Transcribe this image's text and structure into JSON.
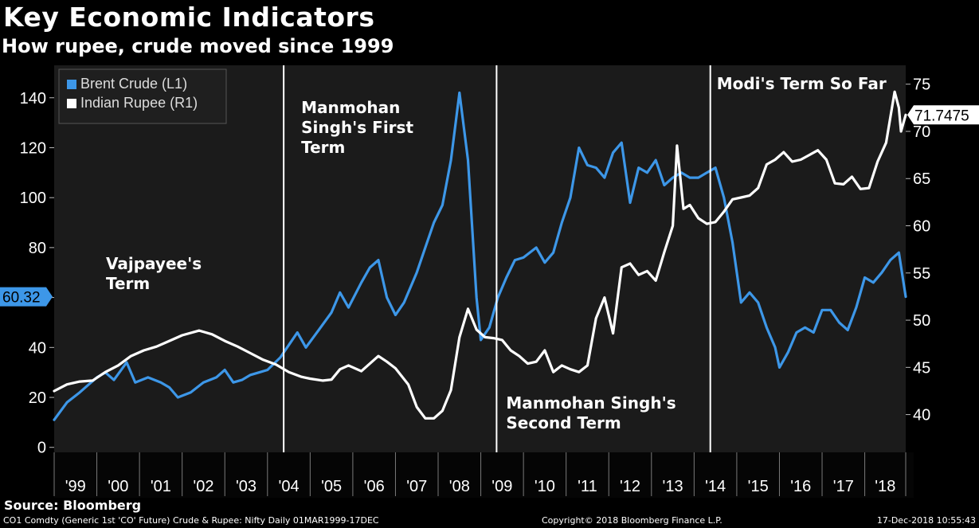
{
  "header": {
    "title": "Key Economic Indicators",
    "subtitle": "How rupee, crude moved since 1999"
  },
  "source": "Source: Bloomberg",
  "footer": {
    "left": "CO1 Comdty (Generic 1st 'CO' Future) Crude & Rupee: Nifty  Daily 01MAR1999-17DEC",
    "center": "Copyright© 2018 Bloomberg Finance L.P.",
    "right": "17-Dec-2018 10:55:43"
  },
  "colors": {
    "crude": "#3d97e8",
    "rupee": "#ffffff",
    "plot_bg": "#1b1b1b",
    "page_bg": "#000000"
  },
  "chart_data": {
    "type": "line",
    "x_range": [
      1999.0,
      2018.96
    ],
    "x_ticks": [
      {
        "label": "'99",
        "value": 1999
      },
      {
        "label": "'00",
        "value": 2000
      },
      {
        "label": "'01",
        "value": 2001
      },
      {
        "label": "'02",
        "value": 2002
      },
      {
        "label": "'03",
        "value": 2003
      },
      {
        "label": "'04",
        "value": 2004
      },
      {
        "label": "'05",
        "value": 2005
      },
      {
        "label": "'06",
        "value": 2006
      },
      {
        "label": "'07",
        "value": 2007
      },
      {
        "label": "'08",
        "value": 2008
      },
      {
        "label": "'09",
        "value": 2009
      },
      {
        "label": "'10",
        "value": 2010
      },
      {
        "label": "'11",
        "value": 2011
      },
      {
        "label": "'12",
        "value": 2012
      },
      {
        "label": "'13",
        "value": 2013
      },
      {
        "label": "'14",
        "value": 2014
      },
      {
        "label": "'15",
        "value": 2015
      },
      {
        "label": "'16",
        "value": 2016
      },
      {
        "label": "'17",
        "value": 2017
      },
      {
        "label": "'18",
        "value": 2018
      }
    ],
    "left_axis": {
      "range": [
        -2,
        153
      ],
      "ticks": [
        0,
        20,
        40,
        60,
        80,
        100,
        120,
        140
      ]
    },
    "right_axis": {
      "range": [
        36,
        77
      ],
      "ticks": [
        40,
        45,
        50,
        55,
        60,
        65,
        70,
        75
      ]
    },
    "legend": [
      {
        "label": "Brent Crude (L1)",
        "color": "#3d97e8"
      },
      {
        "label": "Indian Rupee (R1)",
        "color": "#ffffff"
      }
    ],
    "last_value_labels": {
      "crude": "60.32",
      "rupee": "71.7475"
    },
    "terms": [
      {
        "label_lines": [
          "Vajpayee's",
          "Term"
        ],
        "start": 1999.0,
        "end": 2004.38
      },
      {
        "label_lines": [
          "Manmohan",
          "Singh's First",
          "Term"
        ],
        "start": 2004.38,
        "end": 2009.37
      },
      {
        "label_lines": [
          "Manmohan Singh's",
          "Second Term"
        ],
        "start": 2009.37,
        "end": 2014.38
      },
      {
        "label_lines": [
          "Modi's Term So Far"
        ],
        "start": 2014.38,
        "end": 2018.96
      }
    ],
    "series": [
      {
        "name": "Brent Crude (L1)",
        "axis": "left",
        "x": [
          1999.0,
          1999.3,
          1999.6,
          1999.8,
          2000.0,
          2000.2,
          2000.4,
          2000.7,
          2000.9,
          2001.2,
          2001.5,
          2001.7,
          2001.9,
          2002.2,
          2002.5,
          2002.8,
          2003.0,
          2003.2,
          2003.4,
          2003.6,
          2003.8,
          2004.0,
          2004.3,
          2004.5,
          2004.7,
          2004.9,
          2005.2,
          2005.5,
          2005.7,
          2005.9,
          2006.2,
          2006.4,
          2006.6,
          2006.8,
          2007.0,
          2007.2,
          2007.5,
          2007.7,
          2007.9,
          2008.1,
          2008.3,
          2008.5,
          2008.7,
          2008.9,
          2009.0,
          2009.2,
          2009.4,
          2009.6,
          2009.8,
          2010.0,
          2010.3,
          2010.5,
          2010.7,
          2010.9,
          2011.1,
          2011.3,
          2011.5,
          2011.7,
          2011.9,
          2012.1,
          2012.3,
          2012.5,
          2012.7,
          2012.9,
          2013.1,
          2013.3,
          2013.5,
          2013.7,
          2013.9,
          2014.1,
          2014.3,
          2014.5,
          2014.7,
          2014.9,
          2015.1,
          2015.3,
          2015.5,
          2015.7,
          2015.9,
          2016.0,
          2016.2,
          2016.4,
          2016.6,
          2016.8,
          2017.0,
          2017.2,
          2017.4,
          2017.6,
          2017.8,
          2018.0,
          2018.2,
          2018.4,
          2018.6,
          2018.8,
          2018.96
        ],
        "y": [
          11,
          18,
          22,
          25,
          28,
          30,
          27,
          34,
          26,
          28,
          26,
          24,
          20,
          22,
          26,
          28,
          31,
          26,
          27,
          29,
          30,
          31,
          36,
          41,
          46,
          40,
          47,
          54,
          62,
          56,
          66,
          72,
          75,
          60,
          53,
          58,
          70,
          80,
          90,
          97,
          115,
          142,
          115,
          60,
          43,
          48,
          60,
          68,
          75,
          76,
          80,
          74,
          78,
          90,
          100,
          120,
          113,
          112,
          108,
          118,
          122,
          98,
          112,
          110,
          115,
          105,
          108,
          110,
          108,
          108,
          110,
          112,
          100,
          82,
          58,
          62,
          58,
          48,
          40,
          32,
          38,
          46,
          48,
          46,
          55,
          55,
          50,
          47,
          56,
          68,
          66,
          70,
          75,
          78,
          60.32
        ]
      },
      {
        "name": "Indian Rupee (R1)",
        "axis": "right",
        "x": [
          1999.0,
          1999.3,
          1999.6,
          1999.9,
          2000.2,
          2000.5,
          2000.8,
          2001.1,
          2001.4,
          2001.7,
          2002.0,
          2002.4,
          2002.7,
          2003.0,
          2003.3,
          2003.6,
          2003.9,
          2004.2,
          2004.5,
          2004.8,
          2005.0,
          2005.3,
          2005.5,
          2005.7,
          2005.9,
          2006.2,
          2006.4,
          2006.6,
          2006.8,
          2007.0,
          2007.3,
          2007.5,
          2007.7,
          2007.9,
          2008.1,
          2008.3,
          2008.5,
          2008.7,
          2008.9,
          2009.1,
          2009.3,
          2009.5,
          2009.7,
          2009.9,
          2010.1,
          2010.3,
          2010.5,
          2010.7,
          2010.9,
          2011.1,
          2011.3,
          2011.5,
          2011.7,
          2011.9,
          2012.1,
          2012.3,
          2012.5,
          2012.7,
          2012.9,
          2013.1,
          2013.3,
          2013.5,
          2013.6,
          2013.75,
          2013.9,
          2014.1,
          2014.3,
          2014.5,
          2014.7,
          2014.9,
          2015.1,
          2015.3,
          2015.5,
          2015.7,
          2015.9,
          2016.1,
          2016.3,
          2016.5,
          2016.7,
          2016.9,
          2017.1,
          2017.3,
          2017.5,
          2017.7,
          2017.9,
          2018.1,
          2018.3,
          2018.5,
          2018.7,
          2018.8,
          2018.85,
          2018.96
        ],
        "y": [
          42.5,
          43.2,
          43.5,
          43.6,
          44.5,
          45.2,
          46.2,
          46.8,
          47.2,
          47.8,
          48.4,
          48.9,
          48.5,
          47.8,
          47.2,
          46.5,
          45.8,
          45.3,
          44.5,
          44.0,
          43.8,
          43.6,
          43.7,
          44.8,
          45.2,
          44.6,
          45.4,
          46.2,
          45.6,
          44.9,
          43.2,
          40.8,
          39.6,
          39.6,
          40.4,
          42.6,
          48.2,
          51.2,
          49.0,
          48.2,
          48.1,
          47.9,
          46.8,
          46.2,
          45.4,
          45.6,
          46.8,
          44.5,
          45.2,
          44.8,
          44.5,
          45.2,
          50.2,
          52.4,
          48.6,
          55.6,
          56.0,
          54.8,
          55.2,
          54.2,
          57.2,
          60.0,
          68.5,
          61.8,
          62.2,
          60.8,
          60.2,
          60.4,
          61.5,
          62.8,
          63.0,
          63.2,
          64.0,
          66.5,
          67.0,
          67.8,
          66.8,
          67.0,
          67.5,
          68.0,
          67.0,
          64.5,
          64.4,
          65.2,
          63.9,
          64.0,
          66.8,
          68.8,
          74.2,
          72.5,
          70.0,
          71.7475
        ]
      }
    ]
  }
}
